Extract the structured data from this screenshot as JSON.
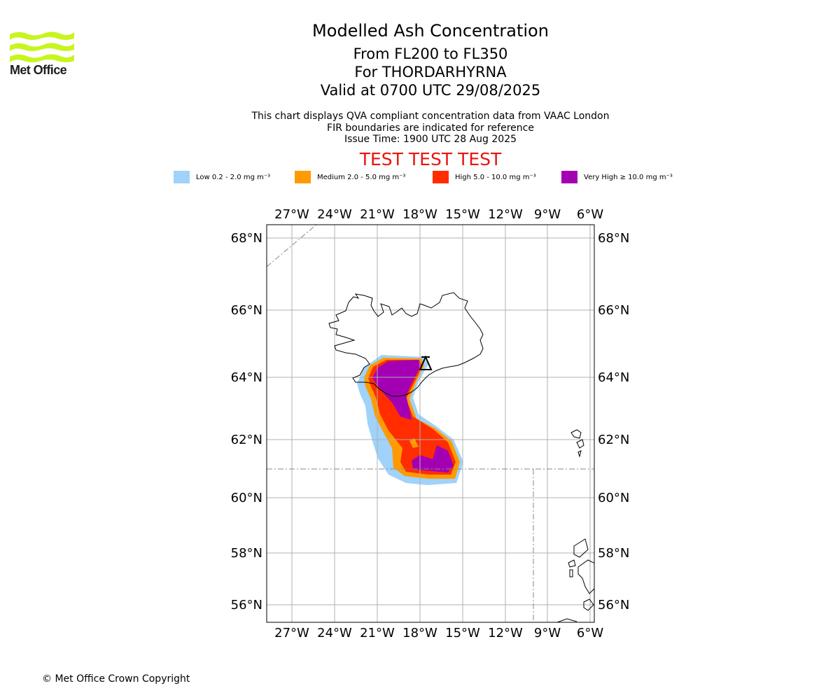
{
  "header": {
    "logo_text": "Met Office",
    "title": "Modelled Ash Concentration",
    "levels": "From FL200 to FL350",
    "volcano": "For THORDARHYRNA",
    "valid": "Valid at 0700 UTC 29/08/2025",
    "note1": "This chart displays QVA compliant concentration data from VAAC London",
    "note2": "FIR boundaries are indicated for reference",
    "issue": "Issue Time: 1900 UTC 28 Aug 2025",
    "test_banner": "TEST TEST TEST"
  },
  "legend": [
    {
      "label": "Low 0.2 - 2.0 mg m⁻³",
      "color": "#a0d2fa"
    },
    {
      "label": "Medium 2.0 - 5.0 mg m⁻³",
      "color": "#ff9a00"
    },
    {
      "label": "High 5.0 - 10.0 mg m⁻³",
      "color": "#ff2d00"
    },
    {
      "label": "Very High  ≥  10.0 mg m⁻³",
      "color": "#a400b3"
    }
  ],
  "map": {
    "lon_ticks": [
      "27°W",
      "24°W",
      "21°W",
      "18°W",
      "15°W",
      "12°W",
      "9°W",
      "6°W"
    ],
    "lat_ticks": [
      "68°N",
      "66°N",
      "64°N",
      "62°N",
      "60°N",
      "58°N",
      "56°N"
    ],
    "volcano_symbol": "△"
  },
  "footer": {
    "copyright": "© Met Office Crown Copyright"
  }
}
